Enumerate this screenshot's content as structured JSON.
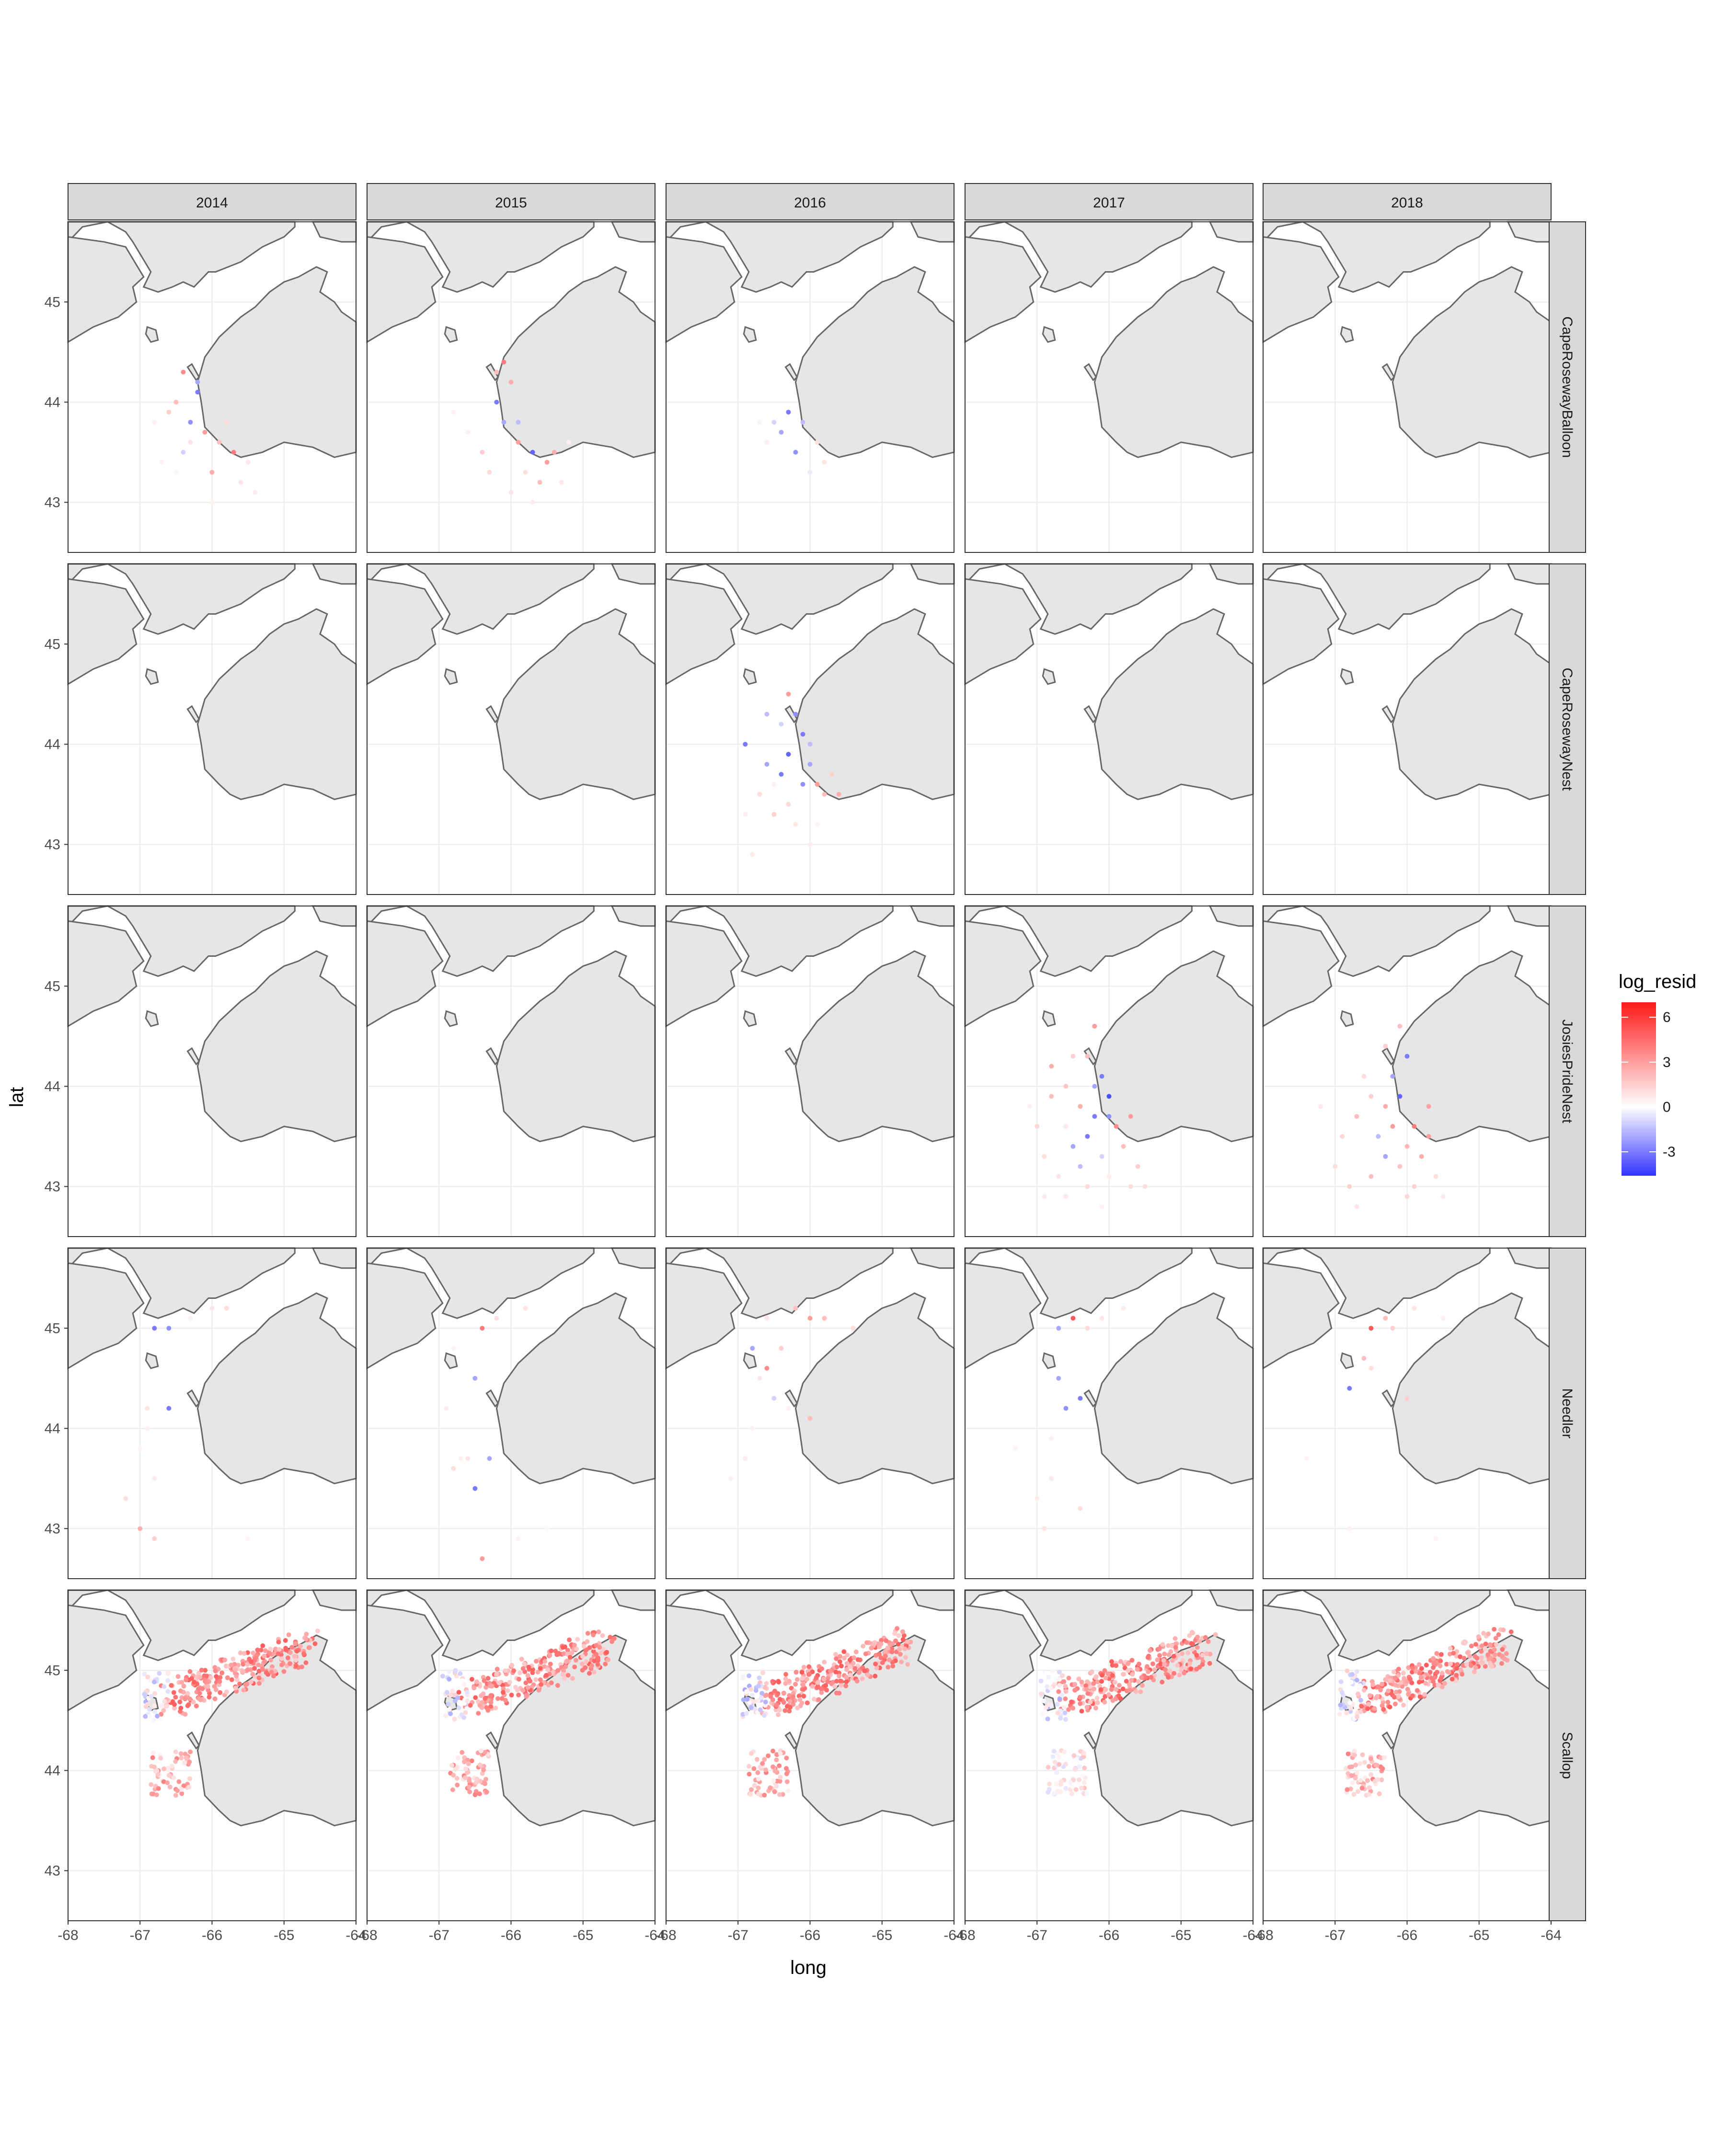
{
  "chart_data": {
    "type": "scatter",
    "title": "",
    "xlabel": "long",
    "ylabel": "lat",
    "xlim": [
      -68,
      -64
    ],
    "ylim": [
      42.5,
      45.8
    ],
    "x_ticks": [
      -68,
      -67,
      -66,
      -65,
      -64
    ],
    "x_tick_labels": [
      "-68",
      "-67",
      "-66",
      "-65",
      "-64"
    ],
    "y_ticks": [
      43,
      44,
      45
    ],
    "y_tick_labels": [
      "43",
      "44",
      "45"
    ],
    "facet_cols": [
      "2014",
      "2015",
      "2016",
      "2017",
      "2018"
    ],
    "facet_rows": [
      "CapeRosewayBalloon",
      "CapeRosewayNest",
      "JosiesPrideNest",
      "Needler",
      "Scallop"
    ],
    "grid": true,
    "background": "map of Gulf of Maine / Nova Scotia coastline, land filled light grey",
    "colors": {
      "land_fill": "#e6e6e6",
      "land_stroke": "#666666",
      "strip_fill": "#d9d9d9",
      "low": "#3333ff",
      "mid": "#ffffff",
      "high": "#ff1a1a"
    },
    "legend": {
      "title": "log_resid",
      "position": "right",
      "min": -4.6,
      "max": 7,
      "breaks": [
        6,
        3,
        0,
        -3
      ],
      "break_labels": [
        "6",
        "3",
        "0",
        "-3"
      ]
    },
    "facets": [
      {
        "row": "CapeRosewayBalloon",
        "col": "2014",
        "points": [
          [
            -66.4,
            44.3,
            3.5
          ],
          [
            -66.2,
            44.1,
            -3
          ],
          [
            -66.3,
            43.8,
            -2.5
          ],
          [
            -66.5,
            44.0,
            2
          ],
          [
            -66.6,
            43.9,
            1.5
          ],
          [
            -66.1,
            43.7,
            3
          ],
          [
            -65.9,
            43.6,
            2
          ],
          [
            -65.7,
            43.5,
            4
          ],
          [
            -66.0,
            43.3,
            2.5
          ],
          [
            -65.6,
            43.2,
            0.8
          ],
          [
            -66.8,
            43.8,
            0.5
          ],
          [
            -66.7,
            43.4,
            0.4
          ],
          [
            -66.4,
            43.5,
            -1
          ],
          [
            -65.4,
            43.1,
            0.6
          ],
          [
            -66.0,
            43.0,
            0.5
          ],
          [
            -66.3,
            43.6,
            0.8
          ],
          [
            -65.8,
            43.8,
            1
          ],
          [
            -66.5,
            43.3,
            0.3
          ],
          [
            -65.5,
            43.4,
            0.7
          ],
          [
            -66.2,
            44.2,
            -2
          ]
        ]
      },
      {
        "row": "CapeRosewayBalloon",
        "col": "2015",
        "points": [
          [
            -66.1,
            44.4,
            4
          ],
          [
            -66.0,
            44.2,
            2.5
          ],
          [
            -66.2,
            44.0,
            -3
          ],
          [
            -66.1,
            43.8,
            -2
          ],
          [
            -65.9,
            43.6,
            3
          ],
          [
            -65.7,
            43.5,
            -3.5
          ],
          [
            -65.5,
            43.4,
            3
          ],
          [
            -65.8,
            43.3,
            1
          ],
          [
            -65.6,
            43.2,
            2
          ],
          [
            -66.4,
            43.5,
            1.5
          ],
          [
            -66.6,
            43.7,
            0.5
          ],
          [
            -66.8,
            43.9,
            0.4
          ],
          [
            -65.3,
            43.2,
            0.7
          ],
          [
            -65.2,
            43.6,
            0.5
          ],
          [
            -65.7,
            43.0,
            0.6
          ],
          [
            -66.3,
            43.3,
            1.2
          ],
          [
            -66.0,
            43.1,
            0.8
          ],
          [
            -65.9,
            43.8,
            -1.5
          ],
          [
            -66.2,
            44.3,
            2
          ],
          [
            -65.4,
            43.5,
            2.5
          ]
        ]
      },
      {
        "row": "CapeRosewayBalloon",
        "col": "2016",
        "points": [
          [
            -66.3,
            43.9,
            -3
          ],
          [
            -66.4,
            43.7,
            -2
          ],
          [
            -66.1,
            43.8,
            -1.5
          ],
          [
            -66.5,
            43.8,
            -1
          ],
          [
            -66.2,
            43.5,
            -2.5
          ],
          [
            -65.9,
            43.6,
            1
          ],
          [
            -65.8,
            43.4,
            0.8
          ],
          [
            -66.6,
            43.6,
            0.5
          ],
          [
            -66.7,
            43.8,
            0.4
          ],
          [
            -66.0,
            43.3,
            -0.5
          ]
        ]
      },
      {
        "row": "CapeRosewayBalloon",
        "col": "2017",
        "points": []
      },
      {
        "row": "CapeRosewayBalloon",
        "col": "2018",
        "points": []
      },
      {
        "row": "CapeRosewayNest",
        "col": "2014",
        "points": []
      },
      {
        "row": "CapeRosewayNest",
        "col": "2015",
        "points": []
      },
      {
        "row": "CapeRosewayNest",
        "col": "2016",
        "points": [
          [
            -66.3,
            44.5,
            3
          ],
          [
            -66.2,
            44.3,
            -2.5
          ],
          [
            -66.1,
            44.1,
            -3
          ],
          [
            -66.3,
            43.9,
            -3.5
          ],
          [
            -66.0,
            43.8,
            -2
          ],
          [
            -65.9,
            43.6,
            3
          ],
          [
            -65.8,
            43.5,
            2
          ],
          [
            -66.4,
            43.7,
            -3
          ],
          [
            -66.6,
            43.8,
            -2
          ],
          [
            -66.9,
            44.0,
            -3
          ],
          [
            -66.7,
            43.5,
            1
          ],
          [
            -66.5,
            43.3,
            1.5
          ],
          [
            -66.2,
            43.2,
            0.8
          ],
          [
            -66.0,
            43.0,
            0.6
          ],
          [
            -66.8,
            42.9,
            0.7
          ],
          [
            -65.7,
            43.7,
            1.5
          ],
          [
            -65.6,
            43.5,
            2.5
          ],
          [
            -66.4,
            44.2,
            -1
          ],
          [
            -66.1,
            43.6,
            -2.5
          ],
          [
            -66.5,
            43.6,
            0.5
          ],
          [
            -65.9,
            43.2,
            0.4
          ],
          [
            -66.3,
            43.4,
            1.2
          ],
          [
            -66.6,
            44.3,
            -1.5
          ],
          [
            -66.9,
            43.3,
            0.5
          ],
          [
            -66.0,
            44.0,
            -1.5
          ]
        ]
      },
      {
        "row": "CapeRosewayNest",
        "col": "2017",
        "points": []
      },
      {
        "row": "CapeRosewayNest",
        "col": "2018",
        "points": []
      },
      {
        "row": "JosiesPrideNest",
        "col": "2014",
        "points": []
      },
      {
        "row": "JosiesPrideNest",
        "col": "2015",
        "points": []
      },
      {
        "row": "JosiesPrideNest",
        "col": "2016",
        "points": []
      },
      {
        "row": "JosiesPrideNest",
        "col": "2017",
        "points": [
          [
            -66.2,
            44.6,
            3
          ],
          [
            -66.3,
            44.3,
            2
          ],
          [
            -66.1,
            44.1,
            -3
          ],
          [
            -66.0,
            43.9,
            -4
          ],
          [
            -66.2,
            43.7,
            -3
          ],
          [
            -66.4,
            43.8,
            2.5
          ],
          [
            -66.6,
            44.0,
            1.8
          ],
          [
            -66.8,
            43.9,
            2
          ],
          [
            -67.0,
            43.6,
            1.2
          ],
          [
            -66.9,
            43.3,
            1
          ],
          [
            -66.7,
            43.1,
            0.8
          ],
          [
            -66.5,
            43.4,
            -2
          ],
          [
            -66.3,
            43.5,
            -3
          ],
          [
            -66.1,
            43.3,
            -1
          ],
          [
            -65.9,
            43.6,
            3.5
          ],
          [
            -65.8,
            43.4,
            2
          ],
          [
            -65.6,
            43.2,
            1.5
          ],
          [
            -65.5,
            43.0,
            1
          ],
          [
            -66.0,
            43.1,
            0.6
          ],
          [
            -66.4,
            43.2,
            -1.5
          ],
          [
            -66.6,
            43.6,
            0.7
          ],
          [
            -67.1,
            43.8,
            0.5
          ],
          [
            -66.8,
            44.2,
            2.5
          ],
          [
            -66.5,
            44.3,
            1.5
          ],
          [
            -66.2,
            44.0,
            -2
          ],
          [
            -66.0,
            43.7,
            -2.5
          ],
          [
            -65.7,
            43.7,
            3
          ],
          [
            -66.3,
            43.0,
            1.2
          ],
          [
            -66.9,
            42.9,
            0.6
          ],
          [
            -66.6,
            42.9,
            0.7
          ],
          [
            -66.1,
            42.8,
            0.4
          ],
          [
            -65.7,
            43.0,
            1.1
          ]
        ]
      },
      {
        "row": "JosiesPrideNest",
        "col": "2018",
        "points": [
          [
            -66.1,
            44.6,
            2
          ],
          [
            -66.0,
            44.3,
            -3
          ],
          [
            -66.2,
            44.1,
            -2
          ],
          [
            -66.1,
            43.9,
            -3.5
          ],
          [
            -65.9,
            43.6,
            4
          ],
          [
            -65.7,
            43.5,
            3
          ],
          [
            -66.3,
            43.8,
            2.5
          ],
          [
            -66.5,
            43.9,
            1.5
          ],
          [
            -66.7,
            43.7,
            2
          ],
          [
            -66.9,
            43.5,
            1.2
          ],
          [
            -67.0,
            43.2,
            1
          ],
          [
            -66.8,
            43.0,
            1.5
          ],
          [
            -66.5,
            43.1,
            2
          ],
          [
            -66.3,
            43.3,
            -2
          ],
          [
            -66.1,
            43.2,
            1.8
          ],
          [
            -65.8,
            43.3,
            2.5
          ],
          [
            -65.6,
            43.1,
            1
          ],
          [
            -65.5,
            42.9,
            0.6
          ],
          [
            -66.0,
            42.9,
            1.2
          ],
          [
            -66.4,
            43.5,
            -1.5
          ],
          [
            -66.6,
            44.1,
            1
          ],
          [
            -67.2,
            43.8,
            0.7
          ],
          [
            -66.2,
            43.6,
            3
          ],
          [
            -65.9,
            43.0,
            1.4
          ],
          [
            -66.7,
            42.8,
            0.8
          ],
          [
            -66.3,
            44.4,
            1.5
          ],
          [
            -66.0,
            43.4,
            2.2
          ],
          [
            -65.7,
            43.8,
            2.8
          ]
        ]
      },
      {
        "row": "Needler",
        "col": "2014",
        "points": [
          [
            -66.8,
            45.0,
            -3
          ],
          [
            -66.6,
            45.0,
            -2.5
          ],
          [
            -66.0,
            45.2,
            0.8
          ],
          [
            -65.8,
            45.2,
            1
          ],
          [
            -66.3,
            45.1,
            0.5
          ],
          [
            -66.6,
            44.2,
            -3
          ],
          [
            -66.9,
            44.0,
            0.5
          ],
          [
            -67.0,
            43.8,
            0.4
          ],
          [
            -66.8,
            43.5,
            0.6
          ],
          [
            -67.2,
            43.3,
            1
          ],
          [
            -67.0,
            43.0,
            2.5
          ],
          [
            -66.8,
            42.9,
            1.5
          ],
          [
            -66.9,
            44.2,
            0.8
          ],
          [
            -65.5,
            42.9,
            0.3
          ]
        ]
      },
      {
        "row": "Needler",
        "col": "2015",
        "points": [
          [
            -66.4,
            45.0,
            4
          ],
          [
            -66.2,
            45.1,
            1
          ],
          [
            -65.8,
            45.2,
            0.8
          ],
          [
            -66.8,
            44.8,
            0.4
          ],
          [
            -66.5,
            44.5,
            -2
          ],
          [
            -66.9,
            44.2,
            0.6
          ],
          [
            -66.7,
            43.7,
            0.5
          ],
          [
            -66.8,
            43.6,
            1
          ],
          [
            -66.6,
            43.7,
            0.8
          ],
          [
            -66.3,
            43.7,
            -2
          ],
          [
            -66.5,
            43.4,
            -3
          ],
          [
            -66.4,
            42.7,
            3
          ],
          [
            -65.9,
            42.9,
            0.4
          ],
          [
            -65.5,
            43.0,
            0.3
          ]
        ]
      },
      {
        "row": "Needler",
        "col": "2016",
        "points": [
          [
            -66.2,
            45.2,
            2
          ],
          [
            -66.0,
            45.1,
            3
          ],
          [
            -65.8,
            45.1,
            2
          ],
          [
            -65.4,
            45.0,
            1
          ],
          [
            -66.6,
            45.1,
            0.8
          ],
          [
            -66.8,
            44.8,
            -2
          ],
          [
            -66.4,
            44.8,
            1.5
          ],
          [
            -66.7,
            44.5,
            0.8
          ],
          [
            -66.5,
            44.3,
            -1
          ],
          [
            -66.3,
            44.2,
            0.5
          ],
          [
            -66.0,
            44.1,
            2
          ],
          [
            -66.9,
            43.7,
            0.6
          ],
          [
            -67.1,
            43.5,
            0.5
          ],
          [
            -66.8,
            44.0,
            0.5
          ],
          [
            -66.6,
            44.6,
            3.5
          ]
        ]
      },
      {
        "row": "Needler",
        "col": "2017",
        "points": [
          [
            -66.5,
            45.1,
            5
          ],
          [
            -66.7,
            45.0,
            -2
          ],
          [
            -66.3,
            45.0,
            1.2
          ],
          [
            -66.1,
            45.1,
            0.8
          ],
          [
            -65.8,
            45.2,
            0.6
          ],
          [
            -66.7,
            44.5,
            -2
          ],
          [
            -66.4,
            44.3,
            -3
          ],
          [
            -66.6,
            44.2,
            -2.5
          ],
          [
            -66.8,
            43.9,
            0.5
          ],
          [
            -67.0,
            43.3,
            0.6
          ],
          [
            -66.9,
            43.0,
            0.8
          ],
          [
            -66.8,
            43.5,
            0.7
          ],
          [
            -67.3,
            43.8,
            0.4
          ],
          [
            -66.4,
            43.2,
            1
          ]
        ]
      },
      {
        "row": "Needler",
        "col": "2018",
        "points": [
          [
            -66.5,
            45.0,
            5
          ],
          [
            -66.3,
            45.1,
            2
          ],
          [
            -65.9,
            45.2,
            0.8
          ],
          [
            -66.2,
            45.0,
            1.5
          ],
          [
            -65.5,
            45.1,
            0.5
          ],
          [
            -66.8,
            44.4,
            -3
          ],
          [
            -66.6,
            44.7,
            2
          ],
          [
            -66.0,
            44.3,
            1.5
          ],
          [
            -66.5,
            44.6,
            1
          ],
          [
            -67.4,
            43.7,
            0.4
          ],
          [
            -66.8,
            43.0,
            0.5
          ],
          [
            -65.6,
            42.9,
            0.4
          ]
        ]
      },
      {
        "row": "Scallop",
        "col": "2014",
        "generated_from_regions": true
      },
      {
        "row": "Scallop",
        "col": "2015",
        "generated_from_regions": true
      },
      {
        "row": "Scallop",
        "col": "2016",
        "generated_from_regions": true
      },
      {
        "row": "Scallop",
        "col": "2017",
        "generated_from_regions": true
      },
      {
        "row": "Scallop",
        "col": "2018",
        "generated_from_regions": true
      }
    ]
  }
}
